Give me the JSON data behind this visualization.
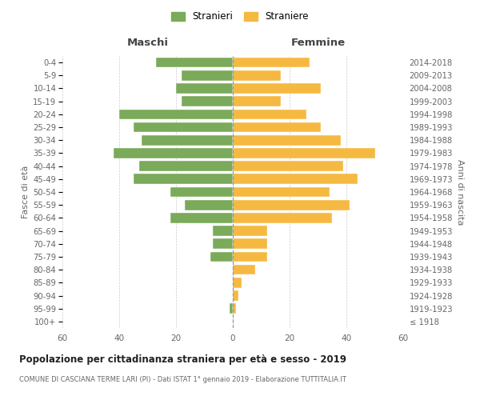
{
  "age_groups": [
    "100+",
    "95-99",
    "90-94",
    "85-89",
    "80-84",
    "75-79",
    "70-74",
    "65-69",
    "60-64",
    "55-59",
    "50-54",
    "45-49",
    "40-44",
    "35-39",
    "30-34",
    "25-29",
    "20-24",
    "15-19",
    "10-14",
    "5-9",
    "0-4"
  ],
  "birth_years": [
    "≤ 1918",
    "1919-1923",
    "1924-1928",
    "1929-1933",
    "1934-1938",
    "1939-1943",
    "1944-1948",
    "1949-1953",
    "1954-1958",
    "1959-1963",
    "1964-1968",
    "1969-1973",
    "1974-1978",
    "1979-1983",
    "1984-1988",
    "1989-1993",
    "1994-1998",
    "1999-2003",
    "2004-2008",
    "2009-2013",
    "2014-2018"
  ],
  "maschi": [
    0,
    1,
    0,
    0,
    0,
    8,
    7,
    7,
    22,
    17,
    22,
    35,
    33,
    42,
    32,
    35,
    40,
    18,
    20,
    18,
    27
  ],
  "femmine": [
    0,
    1,
    2,
    3,
    8,
    12,
    12,
    12,
    35,
    41,
    34,
    44,
    39,
    50,
    38,
    31,
    26,
    17,
    31,
    17,
    27
  ],
  "color_maschi": "#7aaa5a",
  "color_femmine": "#f5b942",
  "title": "Popolazione per cittadinanza straniera per età e sesso - 2019",
  "subtitle": "COMUNE DI CASCIANA TERME LARI (PI) - Dati ISTAT 1° gennaio 2019 - Elaborazione TUTTITALIA.IT",
  "ylabel_left": "Fasce di età",
  "ylabel_right": "Anni di nascita",
  "xlabel_maschi": "Maschi",
  "xlabel_femmine": "Femmine",
  "legend_stranieri": "Stranieri",
  "legend_straniere": "Straniere",
  "xlim": 60,
  "background_color": "#ffffff",
  "grid_color": "#cccccc"
}
